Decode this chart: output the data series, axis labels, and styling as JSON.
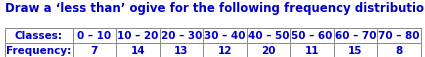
{
  "title": "Draw a ‘less than’ ogive for the following frequency distribution:",
  "title_color": "#0000cc",
  "title_fontsize": 8.5,
  "col_headers": [
    "Classes:",
    "0 – 10",
    "10 – 20",
    "20 – 30",
    "30 – 40",
    "40 – 50",
    "50 – 60",
    "60 – 70",
    "70 – 80"
  ],
  "row_label": "Frequency:",
  "frequencies": [
    "7",
    "14",
    "13",
    "12",
    "20",
    "11",
    "15",
    "8"
  ],
  "text_color": "#0000cc",
  "border_color": "#888888",
  "font_size_table": 7.5,
  "fig_width": 4.25,
  "fig_height": 0.58,
  "dpi": 100
}
